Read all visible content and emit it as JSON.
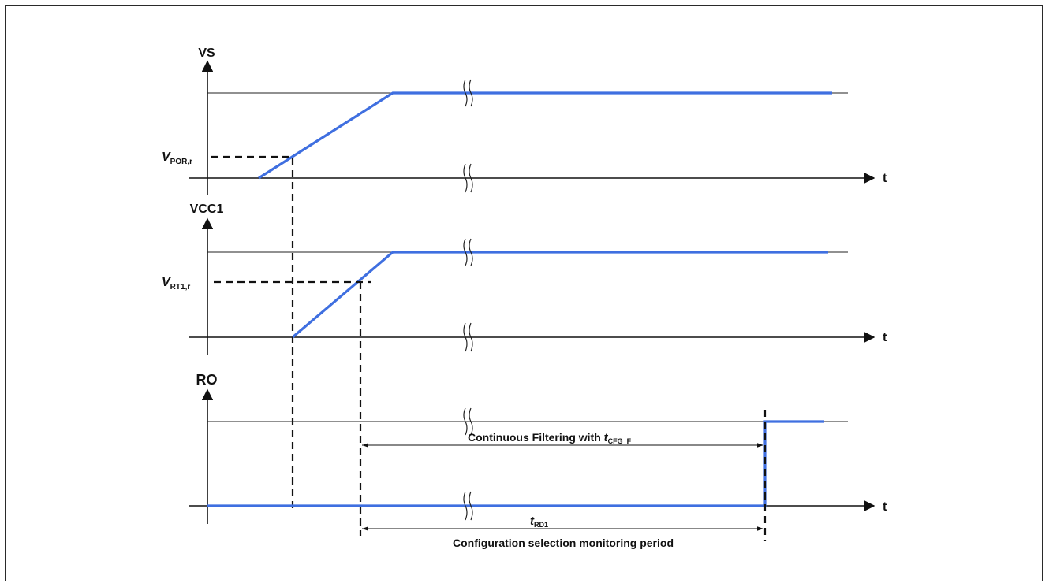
{
  "panels": {
    "vs": {
      "ylabel": "VS",
      "xlabel": "t",
      "threshold_main": "V",
      "threshold_sub": "POR,r"
    },
    "vcc1": {
      "ylabel": "VCC1",
      "xlabel": "t",
      "threshold_main": "V",
      "threshold_sub": "RT1,r"
    },
    "ro": {
      "ylabel": "RO",
      "xlabel": "t"
    }
  },
  "annotations": {
    "filtering_prefix": "Continuous Filtering with ",
    "filtering_var": "t",
    "filtering_sub": "CFG_F",
    "trd_var": "t",
    "trd_sub": "RD1",
    "monitoring_period": "Configuration selection monitoring period"
  },
  "colors": {
    "signal": "#3f6fe0",
    "axes": "#111111"
  }
}
